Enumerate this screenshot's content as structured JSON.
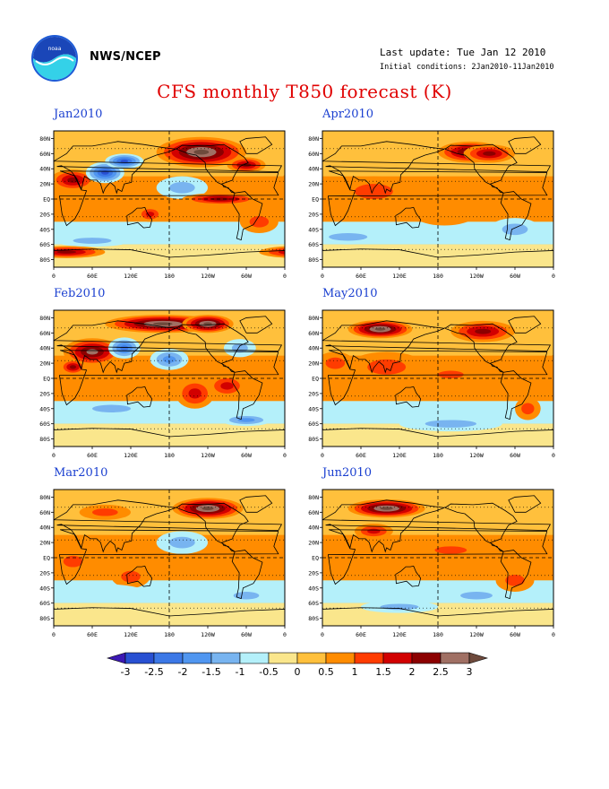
{
  "header": {
    "org": "NWS/NCEP",
    "last_update": "Last update: Tue Jan 12 2010",
    "initial_conditions": "Initial conditions: 2Jan2010-11Jan2010",
    "title": "CFS monthly T850 forecast (K)"
  },
  "axes": {
    "lat_labels": [
      "80N",
      "60N",
      "40N",
      "20N",
      "EQ",
      "20S",
      "40S",
      "60S",
      "80S"
    ],
    "lon_labels": [
      "0",
      "60E",
      "120E",
      "180",
      "120W",
      "60W",
      "0"
    ]
  },
  "panels": [
    {
      "month": "Jan2010"
    },
    {
      "month": "Apr2010"
    },
    {
      "month": "Feb2010"
    },
    {
      "month": "May2010"
    },
    {
      "month": "Mar2010"
    },
    {
      "month": "Jun2010"
    }
  ],
  "colorbar": {
    "levels": [
      "-3",
      "-2.5",
      "-2",
      "-1.5",
      "-1",
      "-0.5",
      "0",
      "0.5",
      "1",
      "1.5",
      "2",
      "2.5",
      "3"
    ],
    "colors": [
      "#3c19b4",
      "#2850d2",
      "#3c78e6",
      "#5096f0",
      "#78b4f0",
      "#b4f0fa",
      "#fae68c",
      "#ffc03c",
      "#ff8c00",
      "#ff3c00",
      "#d20000",
      "#8c0000",
      "#a07064",
      "#6e4a3c"
    ]
  },
  "colors": {
    "title": "#e00000",
    "panel_title": "#1a3fd0"
  }
}
